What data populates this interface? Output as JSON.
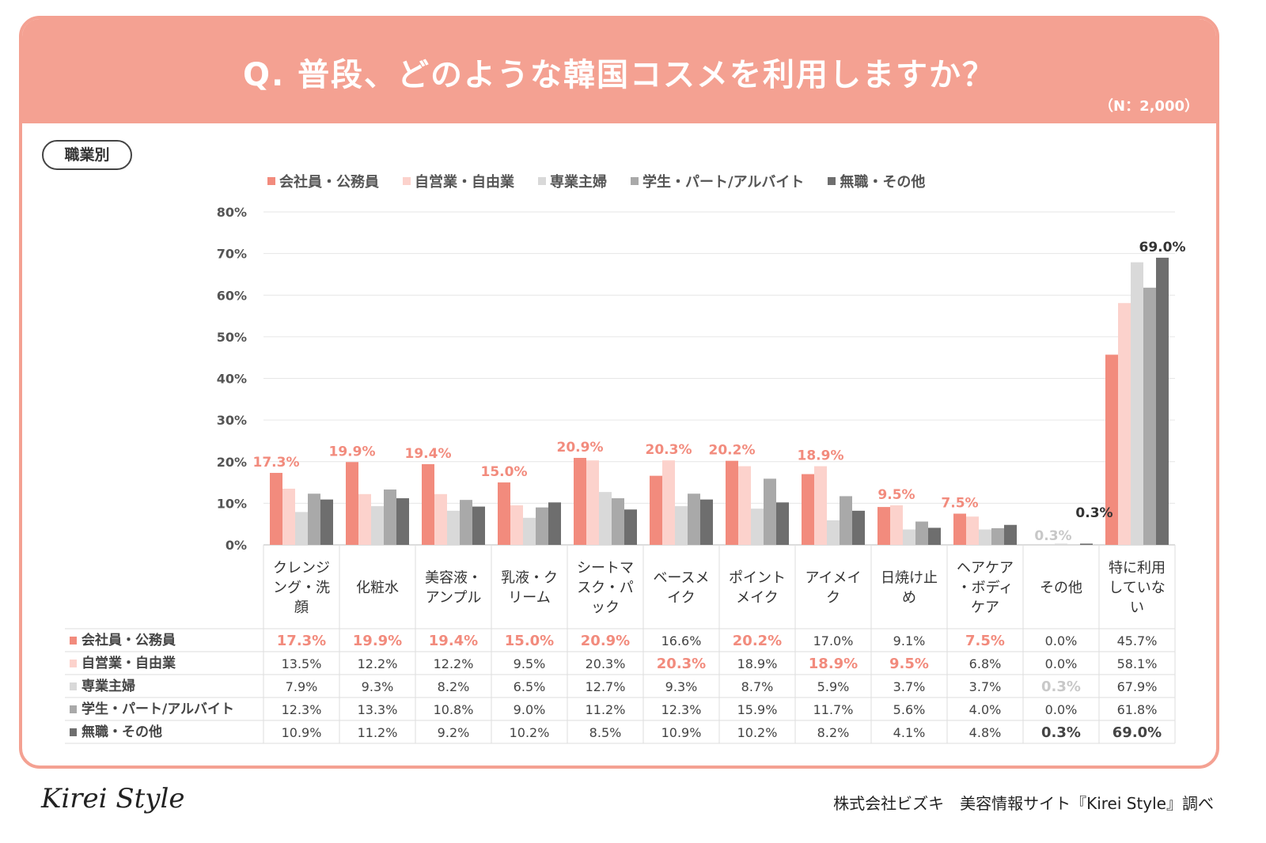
{
  "header": {
    "title": "Q. 普段、どのような韓国コスメを利用しますか？",
    "n_label": "（N：2,000）"
  },
  "segment_tag": "職業別",
  "footer": {
    "logo": "Kirei Style",
    "source": "株式会社ビズキ　美容情報サイト『Kirei Style』調べ"
  },
  "chart_data": {
    "type": "bar",
    "title": "Q. 普段、どのような韓国コスメを利用しますか？",
    "ylim": [
      0,
      80
    ],
    "yticks": [
      "0%",
      "10%",
      "20%",
      "30%",
      "40%",
      "50%",
      "60%",
      "70%",
      "80%"
    ],
    "grid": true,
    "legend_position": "top",
    "categories": [
      "クレンジング・洗顔",
      "化粧水",
      "美容液・アンプル",
      "乳液・クリーム",
      "シートマスク・パック",
      "ベースメイク",
      "ポイントメイク",
      "アイメイク",
      "日焼け止め",
      "ヘアケア・ボディケア",
      "その他",
      "特に利用していない"
    ],
    "series": [
      {
        "name": "会社員・公務員",
        "color": "#f28b7d",
        "values": [
          17.3,
          19.9,
          19.4,
          15.0,
          20.9,
          16.6,
          20.2,
          17.0,
          9.1,
          7.5,
          0.0,
          45.7
        ]
      },
      {
        "name": "自営業・自由業",
        "color": "#fcd2cc",
        "values": [
          13.5,
          12.2,
          12.2,
          9.5,
          20.3,
          20.3,
          18.9,
          18.9,
          9.5,
          6.8,
          0.0,
          58.1
        ]
      },
      {
        "name": "専業主婦",
        "color": "#d9d9d9",
        "values": [
          7.9,
          9.3,
          8.2,
          6.5,
          12.7,
          9.3,
          8.7,
          5.9,
          3.7,
          3.7,
          0.3,
          67.9
        ]
      },
      {
        "name": "学生・パート/アルバイト",
        "color": "#a9a9a9",
        "values": [
          12.3,
          13.3,
          10.8,
          9.0,
          11.2,
          12.3,
          15.9,
          11.7,
          5.6,
          4.0,
          0.0,
          61.8
        ]
      },
      {
        "name": "無職・その他",
        "color": "#6e6e6e",
        "values": [
          10.9,
          11.2,
          9.2,
          10.2,
          8.5,
          10.9,
          10.2,
          8.2,
          4.1,
          4.8,
          0.3,
          69.0
        ]
      }
    ],
    "highlight": [
      [
        0,
        0
      ],
      [
        1,
        0
      ],
      [
        2,
        0
      ],
      [
        3,
        0
      ],
      [
        4,
        0
      ],
      [
        5,
        1
      ],
      [
        6,
        0
      ],
      [
        7,
        1
      ],
      [
        8,
        1
      ],
      [
        9,
        0
      ],
      [
        10,
        2
      ],
      [
        10,
        4
      ],
      [
        11,
        4
      ]
    ],
    "data_labels": [
      {
        "cat": 0,
        "series": 0,
        "text": "17.3%"
      },
      {
        "cat": 1,
        "series": 0,
        "text": "19.9%"
      },
      {
        "cat": 2,
        "series": 0,
        "text": "19.4%"
      },
      {
        "cat": 3,
        "series": 0,
        "text": "15.0%"
      },
      {
        "cat": 4,
        "series": 0,
        "text": "20.9%"
      },
      {
        "cat": 5,
        "series": 1,
        "text": "20.3%"
      },
      {
        "cat": 6,
        "series": 0,
        "text": "20.2%"
      },
      {
        "cat": 7,
        "series": 1,
        "text": "18.9%"
      },
      {
        "cat": 8,
        "series": 1,
        "text": "9.5%"
      },
      {
        "cat": 9,
        "series": 0,
        "text": "7.5%"
      },
      {
        "cat": 10,
        "series": 2,
        "text": "0.3%"
      },
      {
        "cat": 10,
        "series": 4,
        "text": "0.3%"
      },
      {
        "cat": 11,
        "series": 4,
        "text": "69.0%"
      }
    ]
  }
}
